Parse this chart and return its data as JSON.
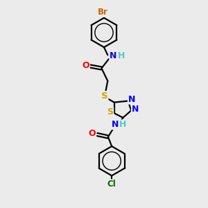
{
  "background_color": "#ebebeb",
  "atom_colors": {
    "C": "#000000",
    "H": "#4ecdc4",
    "N": "#0000ff",
    "O": "#ff0000",
    "S": "#ccaa00",
    "Br": "#cc6600",
    "Cl": "#006600"
  },
  "bond_color": "#000000",
  "bond_width": 1.6,
  "fig_w": 3.0,
  "fig_h": 3.0,
  "dpi": 100,
  "xlim": [
    0,
    10
  ],
  "ylim": [
    0,
    10
  ]
}
